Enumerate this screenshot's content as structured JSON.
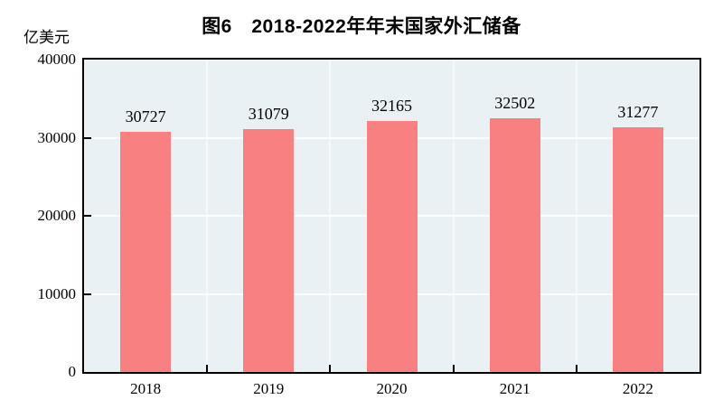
{
  "title": "图6　2018-2022年年末国家外汇储备",
  "unit_label": "亿美元",
  "colors": {
    "bar": "#F98080",
    "plot_background": "#E9F1F4",
    "gridline": "#FFFFFF",
    "axis": "#000000",
    "text": "#000000"
  },
  "chart_data": {
    "type": "bar",
    "title": "图6　2018-2022年年末国家外汇储备",
    "categories": [
      "2018",
      "2019",
      "2020",
      "2021",
      "2022"
    ],
    "values": [
      30727,
      31079,
      32165,
      32502,
      31277
    ],
    "bar_value_labels": [
      "30727",
      "31079",
      "32165",
      "32502",
      "31277"
    ],
    "xlabel": "",
    "ylabel": "亿美元",
    "ylim": [
      0,
      40000
    ],
    "yticks": [
      0,
      10000,
      20000,
      30000,
      40000
    ],
    "grid": true,
    "legend": false
  }
}
